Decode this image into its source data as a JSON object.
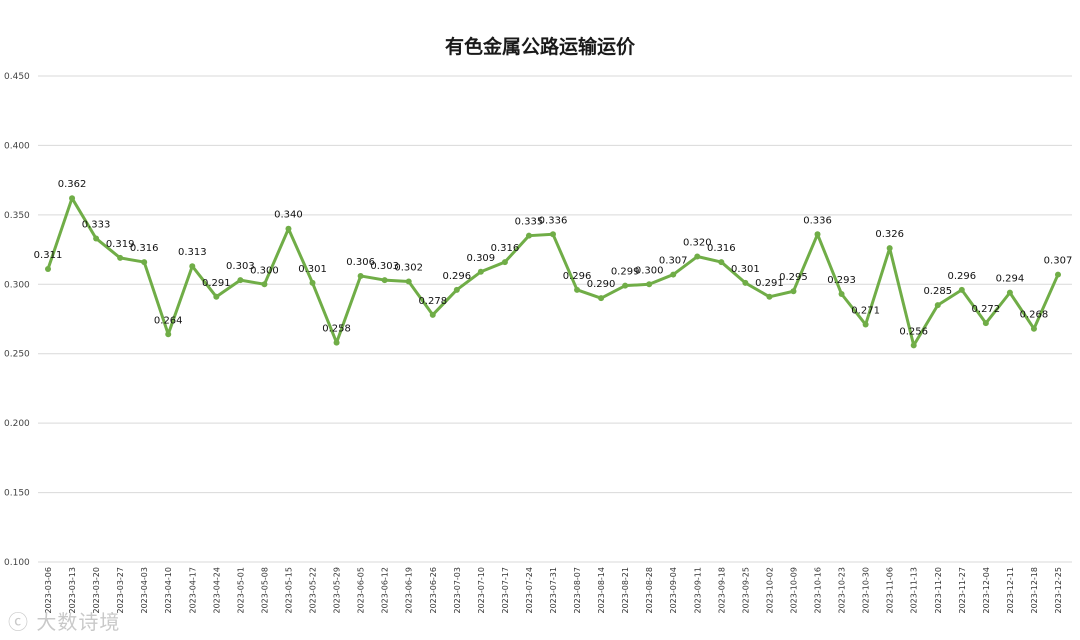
{
  "chart_data": {
    "type": "line",
    "title": "有色金属公路运输运价",
    "xlabel": "",
    "ylabel": "",
    "ylim": [
      0.1,
      0.45
    ],
    "yticks": [
      "0.100",
      "0.150",
      "0.200",
      "0.250",
      "0.300",
      "0.350",
      "0.400",
      "0.450"
    ],
    "grid": true,
    "legend": "none",
    "line_color": "#70ad47",
    "categories": [
      "2023-03-06",
      "2023-03-13",
      "2023-03-20",
      "2023-03-27",
      "2023-04-03",
      "2023-04-10",
      "2023-04-17",
      "2023-04-24",
      "2023-05-01",
      "2023-05-08",
      "2023-05-15",
      "2023-05-22",
      "2023-05-29",
      "2023-06-05",
      "2023-06-12",
      "2023-06-19",
      "2023-06-26",
      "2023-07-03",
      "2023-07-10",
      "2023-07-17",
      "2023-07-24",
      "2023-07-31",
      "2023-08-07",
      "2023-08-14",
      "2023-08-21",
      "2023-08-28",
      "2023-09-04",
      "2023-09-11",
      "2023-09-18",
      "2023-09-25",
      "2023-10-02",
      "2023-10-09",
      "2023-10-16",
      "2023-10-23",
      "2023-10-30",
      "2023-11-06",
      "2023-11-13",
      "2023-11-20",
      "2023-11-27",
      "2023-12-04",
      "2023-12-11",
      "2023-12-18",
      "2023-12-25"
    ],
    "values": [
      0.311,
      0.362,
      0.333,
      0.319,
      0.316,
      0.264,
      0.313,
      0.291,
      0.303,
      0.3,
      0.34,
      0.301,
      0.258,
      0.306,
      0.303,
      0.302,
      0.278,
      0.296,
      0.309,
      0.316,
      0.335,
      0.336,
      0.296,
      0.29,
      0.299,
      0.3,
      0.307,
      0.32,
      0.316,
      0.301,
      0.291,
      0.295,
      0.336,
      0.293,
      0.271,
      0.326,
      0.256,
      0.285,
      0.296,
      0.272,
      0.294,
      0.268,
      0.307
    ],
    "labels": [
      "0.311",
      "0.362",
      "0.333",
      "0.319",
      "0.316",
      "0.264",
      "0.313",
      "0.291",
      "0.303",
      "0.300",
      "0.340",
      "0.301",
      "0.258",
      "0.306",
      "0.303",
      "0.302",
      "0.278",
      "0.296",
      "0.309",
      "0.316",
      "0.335",
      "0.336",
      "0.296",
      "0.290",
      "0.299",
      "0.300",
      "0.307",
      "0.320",
      "0.316",
      "0.301",
      "0.291",
      "0.295",
      "0.336",
      "0.293",
      "0.271",
      "0.326",
      "0.256",
      "0.285",
      "0.296",
      "0.272",
      "0.294",
      "0.268",
      "0.307"
    ]
  },
  "watermark": {
    "text": "大数诗境",
    "icon": "logo-icon"
  }
}
